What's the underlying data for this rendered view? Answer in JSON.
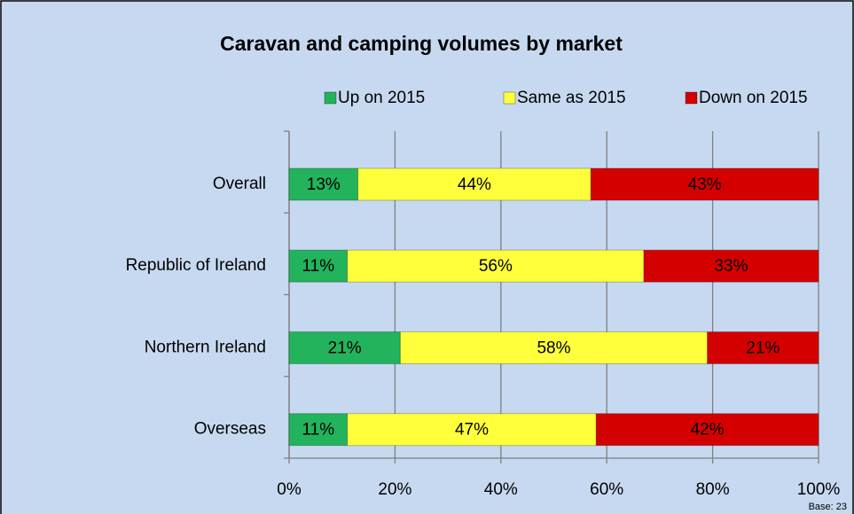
{
  "chart_data": {
    "type": "stacked_bar_horizontal",
    "title": "Caravan and camping volumes by market",
    "categories": [
      "Overall",
      "Republic of Ireland",
      "Northern Ireland",
      "Overseas"
    ],
    "series": [
      {
        "name": "Up on 2015",
        "color": "#22b35c",
        "values": [
          13,
          11,
          21,
          11
        ],
        "value_labels": [
          "13%",
          "11%",
          "21%",
          "11%"
        ]
      },
      {
        "name": "Same as 2015",
        "color": "#ffff3c",
        "values": [
          44,
          56,
          58,
          47
        ],
        "value_labels": [
          "44%",
          "56%",
          "58%",
          "47%"
        ]
      },
      {
        "name": "Down on 2015",
        "color": "#d40000",
        "values": [
          43,
          33,
          21,
          42
        ],
        "value_labels": [
          "43%",
          "33%",
          "21%",
          "42%"
        ]
      }
    ],
    "xlim": [
      0,
      100
    ],
    "xticks": [
      {
        "value": 0,
        "label": "0%"
      },
      {
        "value": 20,
        "label": "20%"
      },
      {
        "value": 40,
        "label": "40%"
      },
      {
        "value": 60,
        "label": "60%"
      },
      {
        "value": 80,
        "label": "80%"
      },
      {
        "value": 100,
        "label": "100%"
      }
    ],
    "grid": true,
    "legend": "top",
    "annotation": "Base: 23"
  }
}
